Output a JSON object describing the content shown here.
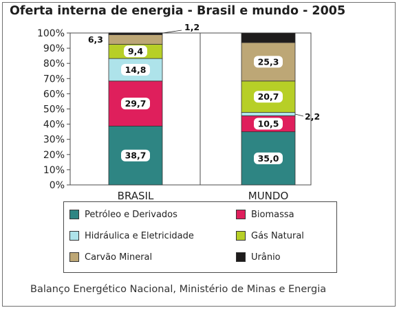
{
  "chart_data": {
    "type": "bar",
    "stacked": true,
    "title": "Oferta interna de energia - Brasil e mundo - 2005",
    "categories": [
      "BRASIL",
      "MUNDO"
    ],
    "ylim": [
      0,
      100
    ],
    "y_ticks": [
      "0%",
      "10%",
      "20%",
      "30%",
      "40%",
      "50%",
      "60%",
      "70%",
      "80%",
      "90%",
      "100%"
    ],
    "grid": false,
    "legend_placement": "bottom",
    "series": [
      {
        "name": "Petróleo e Derivados",
        "color": "#2e8583",
        "values": [
          38.7,
          35.0
        ],
        "labels": [
          "38,7",
          "35,0"
        ]
      },
      {
        "name": "Biomassa",
        "color": "#df1f5c",
        "values": [
          29.7,
          10.5
        ],
        "labels": [
          "29,7",
          "10,5"
        ]
      },
      {
        "name": "Hidráulica e Eletricidade",
        "color": "#aee3ea",
        "values": [
          14.8,
          2.2
        ],
        "labels": [
          "14,8",
          "2,2"
        ]
      },
      {
        "name": "Gás Natural",
        "color": "#b7cf27",
        "values": [
          9.4,
          20.7
        ],
        "labels": [
          "9,4",
          "20,7"
        ]
      },
      {
        "name": "Carvão Mineral",
        "color": "#bda776",
        "values": [
          6.3,
          25.3
        ],
        "labels": [
          "6,3",
          "25,3"
        ]
      },
      {
        "name": "Urânio",
        "color": "#1e1c1c",
        "values": [
          1.2,
          6.3
        ],
        "labels": [
          "1,2",
          "6,3"
        ]
      }
    ],
    "source": "Balanço Energético Nacional, Ministério de Minas e Energia"
  }
}
